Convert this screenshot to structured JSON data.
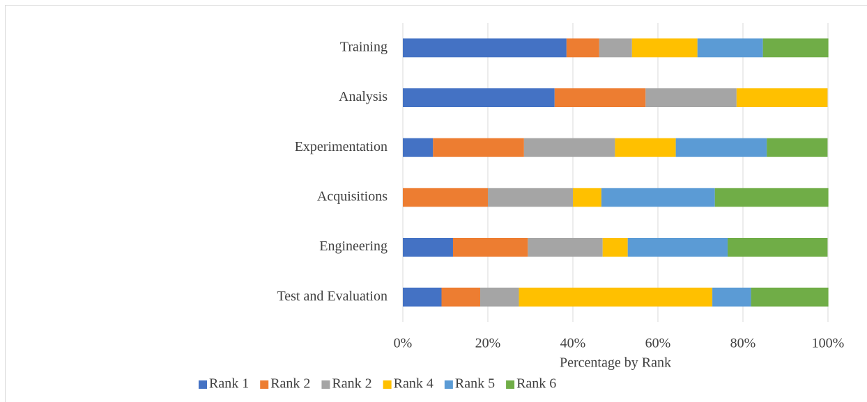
{
  "chart_data": {
    "type": "stacked_barh",
    "xlabel": "Percentage by Rank",
    "categories": [
      "Training",
      "Analysis",
      "Experimentation",
      "Acquisitions",
      "Engineering",
      "Test and Evaluation"
    ],
    "series": [
      {
        "name": "Rank 1",
        "color": "#4472c4",
        "values": [
          38.5,
          35.7,
          7.1,
          0,
          11.8,
          9.1
        ]
      },
      {
        "name": "Rank 2",
        "color": "#ed7d31",
        "values": [
          7.7,
          21.4,
          21.4,
          20,
          17.6,
          9.1
        ]
      },
      {
        "name": "Rank 2",
        "color": "#a5a5a5",
        "values": [
          7.7,
          21.4,
          21.4,
          20,
          17.6,
          9.1
        ]
      },
      {
        "name": "Rank 4",
        "color": "#ffc000",
        "values": [
          15.4,
          21.4,
          14.3,
          6.7,
          5.9,
          45.5
        ]
      },
      {
        "name": "Rank 5",
        "color": "#5b9bd5",
        "values": [
          15.4,
          0,
          21.4,
          26.7,
          23.5,
          9.1
        ]
      },
      {
        "name": "Rank 6",
        "color": "#70ad47",
        "values": [
          15.4,
          0,
          14.3,
          26.7,
          23.5,
          18.2
        ]
      }
    ],
    "xlim": [
      0,
      100
    ],
    "xticks": [
      {
        "value": 0,
        "label": "0%"
      },
      {
        "value": 20,
        "label": "20%"
      },
      {
        "value": 40,
        "label": "40%"
      },
      {
        "value": 60,
        "label": "60%"
      },
      {
        "value": 80,
        "label": "80%"
      },
      {
        "value": 100,
        "label": "100%"
      }
    ],
    "grid": true,
    "legend": "bottom"
  }
}
